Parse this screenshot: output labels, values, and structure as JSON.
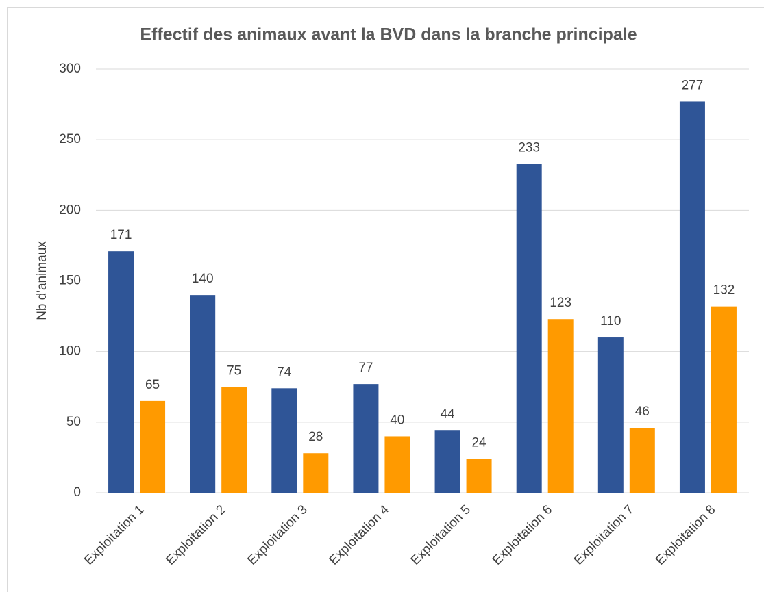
{
  "chart_data": {
    "type": "bar",
    "title": "Effectif des animaux avant la BVD dans la branche principale",
    "y_label": "Nb d'animaux",
    "categories": [
      "Exploitation 1",
      "Exploitation 2",
      "Exploitation 3",
      "Exploitation 4",
      "Exploitation 5",
      "Exploitation 6",
      "Exploitation 7",
      "Exploitation 8"
    ],
    "series": [
      {
        "color": "#2f5597",
        "values": [
          171,
          140,
          74,
          77,
          44,
          233,
          110,
          277
        ]
      },
      {
        "color": "#ff9a00",
        "values": [
          65,
          75,
          28,
          40,
          24,
          123,
          46,
          132
        ]
      }
    ],
    "ylim": [
      0,
      300
    ],
    "yticks": [
      0,
      50,
      100,
      150,
      200,
      250,
      300
    ],
    "grid": true,
    "data_labels": true
  }
}
